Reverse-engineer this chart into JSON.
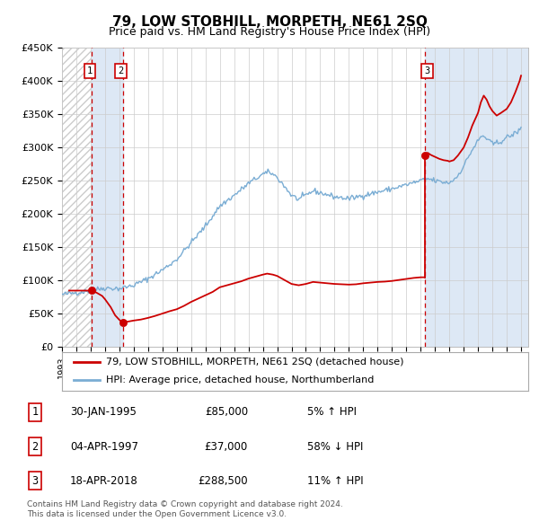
{
  "title": "79, LOW STOBHILL, MORPETH, NE61 2SQ",
  "subtitle": "Price paid vs. HM Land Registry's House Price Index (HPI)",
  "legend_label_red": "79, LOW STOBHILL, MORPETH, NE61 2SQ (detached house)",
  "legend_label_blue": "HPI: Average price, detached house, Northumberland",
  "transactions": [
    {
      "num": 1,
      "date": 1995.08,
      "price": 85000,
      "label": "30-JAN-1995",
      "pct": "5% ↑ HPI"
    },
    {
      "num": 2,
      "date": 1997.25,
      "price": 37000,
      "label": "04-APR-1997",
      "pct": "58% ↓ HPI"
    },
    {
      "num": 3,
      "date": 2018.29,
      "price": 288500,
      "label": "18-APR-2018",
      "pct": "11% ↑ HPI"
    }
  ],
  "footnote1": "Contains HM Land Registry data © Crown copyright and database right 2024.",
  "footnote2": "This data is licensed under the Open Government Licence v3.0.",
  "red_color": "#cc0000",
  "blue_color": "#7aadd4",
  "shaded_color": "#dde8f5",
  "hatch_color": "#cccccc",
  "grid_color": "#cccccc",
  "background_color": "#ffffff",
  "ylim": [
    0,
    450000
  ],
  "xlim_start": 1993.0,
  "xlim_end": 2025.5,
  "yticks": [
    0,
    50000,
    100000,
    150000,
    200000,
    250000,
    300000,
    350000,
    400000,
    450000
  ],
  "ytick_labels": [
    "£0",
    "£50K",
    "£100K",
    "£150K",
    "£200K",
    "£250K",
    "£300K",
    "£350K",
    "£400K",
    "£450K"
  ],
  "xticks": [
    1993,
    1994,
    1995,
    1996,
    1997,
    1998,
    1999,
    2000,
    2001,
    2002,
    2003,
    2004,
    2005,
    2006,
    2007,
    2008,
    2009,
    2010,
    2011,
    2012,
    2013,
    2014,
    2015,
    2016,
    2017,
    2018,
    2019,
    2020,
    2021,
    2022,
    2023,
    2024,
    2025
  ],
  "table_rows": [
    [
      "1",
      "30-JAN-1995",
      "£85,000",
      "5% ↑ HPI"
    ],
    [
      "2",
      "04-APR-1997",
      "£37,000",
      "58% ↓ HPI"
    ],
    [
      "3",
      "18-APR-2018",
      "£288,500",
      "11% ↑ HPI"
    ]
  ]
}
